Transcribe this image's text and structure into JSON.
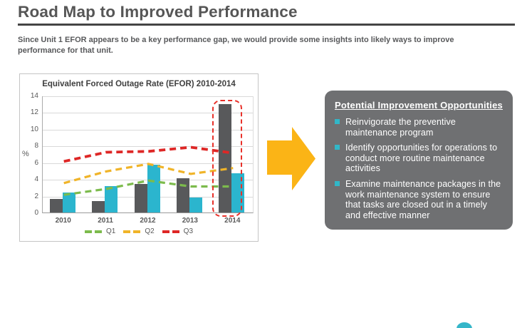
{
  "slide": {
    "title": "Road Map to Improved Performance",
    "subtitle": "Since Unit 1 EFOR appears to be a key performance gap, we would provide some insights into likely ways to improve performance for that unit."
  },
  "chart_data": {
    "type": "combo-bar-line",
    "title": "Equivalent Forced Outage Rate (EFOR) 2010-2014",
    "ylabel": "%",
    "ylim": [
      0,
      14
    ],
    "ytick_step": 2,
    "grid": true,
    "legend_position": "bottom",
    "categories": [
      "2010",
      "2011",
      "2012",
      "2013",
      "2014"
    ],
    "bar_series": [
      {
        "name": "bar-dark-gray",
        "color": "#58595B",
        "values": [
          1.6,
          1.4,
          3.4,
          4.1,
          13.0
        ]
      },
      {
        "name": "bar-cyan",
        "color": "#2BB5CE",
        "values": [
          2.4,
          3.2,
          5.7,
          1.8,
          4.7
        ]
      }
    ],
    "line_series": [
      {
        "name": "Q1",
        "color": "#7CBB4C",
        "values": [
          2.2,
          2.9,
          3.9,
          3.2,
          3.2
        ]
      },
      {
        "name": "Q2",
        "color": "#F0B429",
        "values": [
          3.6,
          5.0,
          5.9,
          4.7,
          5.4
        ]
      },
      {
        "name": "Q3",
        "color": "#DE2726",
        "values": [
          6.2,
          7.3,
          7.4,
          7.9,
          7.2
        ]
      }
    ],
    "legend": [
      "Q1",
      "Q2",
      "Q3"
    ],
    "highlight": {
      "category": "2014",
      "color": "#E8312A"
    }
  },
  "opportunities": {
    "heading": "Potential Improvement Opportunities",
    "items": [
      "Reinvigorate the preventive maintenance program",
      "Identify opportunities for operations to conduct more routine maintenance activities",
      "Examine maintenance packages in the work maintenance system to ensure that tasks are closed out in a timely and effective manner"
    ],
    "bullet_color": "#31B7C8",
    "panel_color": "#6F7072"
  },
  "arrow_color": "#FBB416",
  "logo_color": "#35B6C9"
}
